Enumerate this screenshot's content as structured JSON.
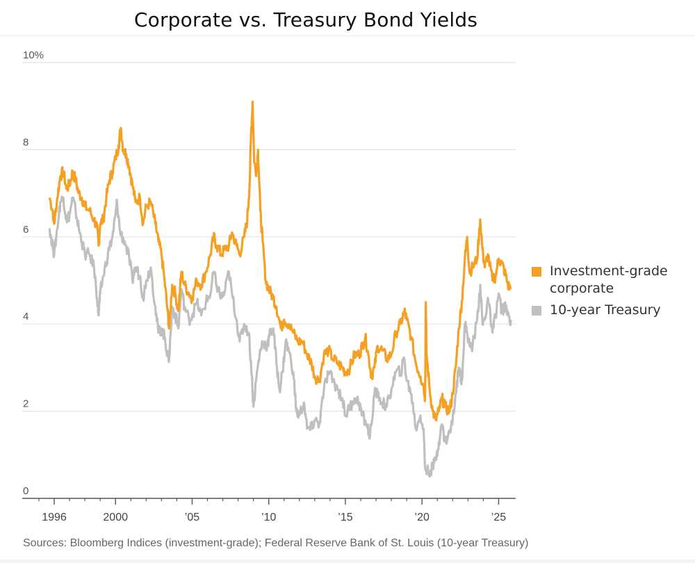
{
  "chart_data": {
    "type": "line",
    "title": "Corporate vs. Treasury Bond Yields",
    "xlabel": "",
    "ylabel": "",
    "ylim": [
      0,
      10
    ],
    "xlim": [
      1994.6,
      2026.2
    ],
    "y_ticks": [
      {
        "value": 10,
        "label": "10%"
      },
      {
        "value": 8,
        "label": "8"
      },
      {
        "value": 6,
        "label": "6"
      },
      {
        "value": 4,
        "label": "4"
      },
      {
        "value": 2,
        "label": "2"
      },
      {
        "value": 0,
        "label": "0"
      }
    ],
    "x_ticks": [
      {
        "value": 1996,
        "label": "1996"
      },
      {
        "value": 2000,
        "label": "2000"
      },
      {
        "value": 2005,
        "label": "’05"
      },
      {
        "value": 2010,
        "label": "’10"
      },
      {
        "value": 2015,
        "label": "’15"
      },
      {
        "value": 2020,
        "label": "’20"
      },
      {
        "value": 2025,
        "label": "’25"
      }
    ],
    "minor_x_ticks": [
      1995,
      1997,
      1998,
      1999,
      2001,
      2002,
      2003,
      2004,
      2006,
      2007,
      2008,
      2009,
      2011,
      2012,
      2013,
      2014,
      2016,
      2017,
      2018,
      2019,
      2021,
      2022,
      2023,
      2024
    ],
    "grid": true,
    "legend_position": "right",
    "series": [
      {
        "name": "Investment-grade corporate",
        "color": "#F5A023",
        "points": [
          [
            1995.7,
            6.9
          ],
          [
            1995.9,
            6.6
          ],
          [
            1996.0,
            6.3
          ],
          [
            1996.2,
            6.9
          ],
          [
            1996.4,
            7.4
          ],
          [
            1996.6,
            7.5
          ],
          [
            1996.8,
            7.1
          ],
          [
            1997.0,
            7.2
          ],
          [
            1997.2,
            7.5
          ],
          [
            1997.4,
            7.3
          ],
          [
            1997.6,
            7.0
          ],
          [
            1997.8,
            6.9
          ],
          [
            1998.0,
            6.7
          ],
          [
            1998.3,
            6.6
          ],
          [
            1998.6,
            6.4
          ],
          [
            1998.8,
            6.2
          ],
          [
            1998.9,
            5.8
          ],
          [
            1999.0,
            6.3
          ],
          [
            1999.2,
            6.4
          ],
          [
            1999.4,
            6.9
          ],
          [
            1999.6,
            7.3
          ],
          [
            1999.8,
            7.5
          ],
          [
            2000.0,
            7.8
          ],
          [
            2000.2,
            8.1
          ],
          [
            2000.35,
            8.5
          ],
          [
            2000.5,
            8.0
          ],
          [
            2000.7,
            7.9
          ],
          [
            2000.9,
            7.6
          ],
          [
            2001.1,
            7.2
          ],
          [
            2001.3,
            6.8
          ],
          [
            2001.6,
            6.9
          ],
          [
            2001.8,
            6.3
          ],
          [
            2002.0,
            6.7
          ],
          [
            2002.3,
            6.8
          ],
          [
            2002.6,
            6.3
          ],
          [
            2002.8,
            5.9
          ],
          [
            2003.0,
            5.6
          ],
          [
            2003.2,
            5.0
          ],
          [
            2003.4,
            4.3
          ],
          [
            2003.5,
            3.9
          ],
          [
            2003.7,
            4.9
          ],
          [
            2003.9,
            4.7
          ],
          [
            2004.1,
            4.3
          ],
          [
            2004.3,
            5.2
          ],
          [
            2004.5,
            4.9
          ],
          [
            2004.8,
            4.7
          ],
          [
            2005.0,
            4.6
          ],
          [
            2005.3,
            5.0
          ],
          [
            2005.6,
            4.9
          ],
          [
            2005.9,
            5.2
          ],
          [
            2006.2,
            5.6
          ],
          [
            2006.4,
            6.0
          ],
          [
            2006.6,
            5.8
          ],
          [
            2006.9,
            5.6
          ],
          [
            2007.1,
            5.7
          ],
          [
            2007.4,
            5.8
          ],
          [
            2007.6,
            6.1
          ],
          [
            2007.9,
            5.8
          ],
          [
            2008.1,
            5.6
          ],
          [
            2008.4,
            6.0
          ],
          [
            2008.6,
            6.4
          ],
          [
            2008.75,
            7.2
          ],
          [
            2008.85,
            8.4
          ],
          [
            2008.95,
            9.1
          ],
          [
            2009.05,
            7.7
          ],
          [
            2009.2,
            7.5
          ],
          [
            2009.3,
            8.0
          ],
          [
            2009.45,
            6.6
          ],
          [
            2009.6,
            5.9
          ],
          [
            2009.8,
            5.0
          ],
          [
            2010.0,
            4.8
          ],
          [
            2010.3,
            4.6
          ],
          [
            2010.5,
            4.4
          ],
          [
            2010.8,
            3.9
          ],
          [
            2011.0,
            4.1
          ],
          [
            2011.3,
            4.0
          ],
          [
            2011.6,
            3.8
          ],
          [
            2011.9,
            3.6
          ],
          [
            2012.2,
            3.6
          ],
          [
            2012.5,
            3.3
          ],
          [
            2012.8,
            3.1
          ],
          [
            2013.0,
            2.8
          ],
          [
            2013.3,
            2.7
          ],
          [
            2013.6,
            3.3
          ],
          [
            2013.9,
            3.4
          ],
          [
            2014.2,
            3.2
          ],
          [
            2014.5,
            3.1
          ],
          [
            2014.8,
            3.0
          ],
          [
            2015.0,
            2.9
          ],
          [
            2015.3,
            3.0
          ],
          [
            2015.6,
            3.3
          ],
          [
            2015.9,
            3.3
          ],
          [
            2016.1,
            3.5
          ],
          [
            2016.3,
            3.7
          ],
          [
            2016.5,
            3.3
          ],
          [
            2016.7,
            2.8
          ],
          [
            2016.9,
            3.0
          ],
          [
            2017.1,
            3.5
          ],
          [
            2017.4,
            3.4
          ],
          [
            2017.7,
            3.2
          ],
          [
            2018.0,
            3.3
          ],
          [
            2018.3,
            3.8
          ],
          [
            2018.6,
            4.0
          ],
          [
            2018.85,
            4.3
          ],
          [
            2019.0,
            4.1
          ],
          [
            2019.3,
            3.7
          ],
          [
            2019.6,
            3.1
          ],
          [
            2019.9,
            2.8
          ],
          [
            2020.1,
            2.6
          ],
          [
            2020.2,
            2.3
          ],
          [
            2020.25,
            4.5
          ],
          [
            2020.3,
            3.3
          ],
          [
            2020.5,
            2.5
          ],
          [
            2020.7,
            2.0
          ],
          [
            2020.9,
            1.8
          ],
          [
            2021.1,
            2.0
          ],
          [
            2021.3,
            2.3
          ],
          [
            2021.5,
            2.1
          ],
          [
            2021.8,
            2.0
          ],
          [
            2022.0,
            2.4
          ],
          [
            2022.2,
            3.0
          ],
          [
            2022.4,
            3.9
          ],
          [
            2022.6,
            4.5
          ],
          [
            2022.8,
            5.5
          ],
          [
            2022.95,
            6.0
          ],
          [
            2023.1,
            5.2
          ],
          [
            2023.3,
            5.3
          ],
          [
            2023.6,
            5.5
          ],
          [
            2023.8,
            6.4
          ],
          [
            2023.95,
            5.7
          ],
          [
            2024.1,
            5.3
          ],
          [
            2024.3,
            5.6
          ],
          [
            2024.6,
            5.0
          ],
          [
            2024.8,
            5.1
          ],
          [
            2025.0,
            5.5
          ],
          [
            2025.2,
            5.4
          ],
          [
            2025.4,
            5.2
          ],
          [
            2025.6,
            4.9
          ],
          [
            2025.8,
            4.8
          ]
        ]
      },
      {
        "name": "10-year Treasury",
        "color": "#BFBFBF",
        "points": [
          [
            1995.7,
            6.2
          ],
          [
            1995.9,
            5.8
          ],
          [
            1996.0,
            5.6
          ],
          [
            1996.2,
            6.2
          ],
          [
            1996.4,
            6.8
          ],
          [
            1996.6,
            6.9
          ],
          [
            1996.8,
            6.4
          ],
          [
            1997.0,
            6.5
          ],
          [
            1997.2,
            6.9
          ],
          [
            1997.4,
            6.6
          ],
          [
            1997.6,
            6.2
          ],
          [
            1997.8,
            5.9
          ],
          [
            1998.0,
            5.6
          ],
          [
            1998.3,
            5.6
          ],
          [
            1998.6,
            5.3
          ],
          [
            1998.8,
            4.6
          ],
          [
            1998.9,
            4.2
          ],
          [
            1999.0,
            4.7
          ],
          [
            1999.2,
            5.1
          ],
          [
            1999.5,
            5.6
          ],
          [
            1999.8,
            6.0
          ],
          [
            2000.0,
            6.5
          ],
          [
            2000.1,
            6.8
          ],
          [
            2000.3,
            6.1
          ],
          [
            2000.6,
            5.9
          ],
          [
            2000.9,
            5.5
          ],
          [
            2001.1,
            5.0
          ],
          [
            2001.3,
            5.3
          ],
          [
            2001.6,
            5.1
          ],
          [
            2001.8,
            4.6
          ],
          [
            2002.0,
            5.0
          ],
          [
            2002.3,
            5.3
          ],
          [
            2002.6,
            4.4
          ],
          [
            2002.8,
            3.8
          ],
          [
            2003.0,
            3.9
          ],
          [
            2003.2,
            3.7
          ],
          [
            2003.4,
            3.3
          ],
          [
            2003.5,
            3.2
          ],
          [
            2003.7,
            4.4
          ],
          [
            2003.9,
            4.2
          ],
          [
            2004.1,
            3.9
          ],
          [
            2004.3,
            4.8
          ],
          [
            2004.5,
            4.4
          ],
          [
            2004.8,
            4.1
          ],
          [
            2005.0,
            4.2
          ],
          [
            2005.3,
            4.5
          ],
          [
            2005.6,
            4.2
          ],
          [
            2005.9,
            4.5
          ],
          [
            2006.2,
            4.7
          ],
          [
            2006.4,
            5.2
          ],
          [
            2006.6,
            4.9
          ],
          [
            2006.9,
            4.6
          ],
          [
            2007.1,
            4.7
          ],
          [
            2007.4,
            5.2
          ],
          [
            2007.6,
            4.7
          ],
          [
            2007.9,
            4.1
          ],
          [
            2008.1,
            3.6
          ],
          [
            2008.4,
            4.0
          ],
          [
            2008.7,
            3.8
          ],
          [
            2008.9,
            2.8
          ],
          [
            2009.0,
            2.1
          ],
          [
            2009.2,
            2.8
          ],
          [
            2009.4,
            3.3
          ],
          [
            2009.6,
            3.6
          ],
          [
            2009.9,
            3.5
          ],
          [
            2010.1,
            3.8
          ],
          [
            2010.3,
            3.9
          ],
          [
            2010.5,
            3.1
          ],
          [
            2010.7,
            2.5
          ],
          [
            2010.9,
            2.9
          ],
          [
            2011.1,
            3.6
          ],
          [
            2011.3,
            3.4
          ],
          [
            2011.6,
            2.9
          ],
          [
            2011.8,
            2.0
          ],
          [
            2012.0,
            1.9
          ],
          [
            2012.3,
            2.2
          ],
          [
            2012.5,
            1.6
          ],
          [
            2012.8,
            1.6
          ],
          [
            2013.0,
            1.8
          ],
          [
            2013.3,
            1.7
          ],
          [
            2013.6,
            2.5
          ],
          [
            2013.9,
            2.9
          ],
          [
            2014.2,
            2.7
          ],
          [
            2014.5,
            2.5
          ],
          [
            2014.8,
            2.3
          ],
          [
            2015.0,
            1.9
          ],
          [
            2015.3,
            2.1
          ],
          [
            2015.6,
            2.3
          ],
          [
            2015.9,
            2.2
          ],
          [
            2016.1,
            1.9
          ],
          [
            2016.4,
            1.7
          ],
          [
            2016.6,
            1.4
          ],
          [
            2016.9,
            2.4
          ],
          [
            2017.1,
            2.4
          ],
          [
            2017.4,
            2.2
          ],
          [
            2017.7,
            2.1
          ],
          [
            2018.0,
            2.5
          ],
          [
            2018.3,
            2.9
          ],
          [
            2018.6,
            2.9
          ],
          [
            2018.85,
            3.2
          ],
          [
            2019.0,
            2.7
          ],
          [
            2019.3,
            2.4
          ],
          [
            2019.6,
            1.6
          ],
          [
            2019.9,
            1.9
          ],
          [
            2020.1,
            1.6
          ],
          [
            2020.2,
            0.7
          ],
          [
            2020.4,
            0.6
          ],
          [
            2020.7,
            0.7
          ],
          [
            2020.9,
            0.9
          ],
          [
            2021.1,
            1.3
          ],
          [
            2021.3,
            1.7
          ],
          [
            2021.5,
            1.3
          ],
          [
            2021.8,
            1.5
          ],
          [
            2022.0,
            1.8
          ],
          [
            2022.2,
            2.4
          ],
          [
            2022.4,
            3.0
          ],
          [
            2022.6,
            2.7
          ],
          [
            2022.8,
            4.0
          ],
          [
            2022.95,
            3.8
          ],
          [
            2023.1,
            3.5
          ],
          [
            2023.3,
            3.5
          ],
          [
            2023.6,
            4.1
          ],
          [
            2023.8,
            4.9
          ],
          [
            2023.95,
            4.0
          ],
          [
            2024.1,
            4.1
          ],
          [
            2024.3,
            4.6
          ],
          [
            2024.6,
            3.8
          ],
          [
            2024.8,
            4.2
          ],
          [
            2025.0,
            4.7
          ],
          [
            2025.2,
            4.3
          ],
          [
            2025.4,
            4.4
          ],
          [
            2025.6,
            4.2
          ],
          [
            2025.8,
            4.1
          ]
        ]
      }
    ],
    "source": "Sources: Bloomberg Indices (investment-grade); Federal Reserve Bank of St. Louis (10-year Treasury)"
  },
  "legend": {
    "items": [
      {
        "label_line1": "Investment-grade",
        "label_line2": "corporate",
        "color": "#F5A023"
      },
      {
        "label_line1": "10-year Treasury",
        "label_line2": "",
        "color": "#BFBFBF"
      }
    ]
  }
}
